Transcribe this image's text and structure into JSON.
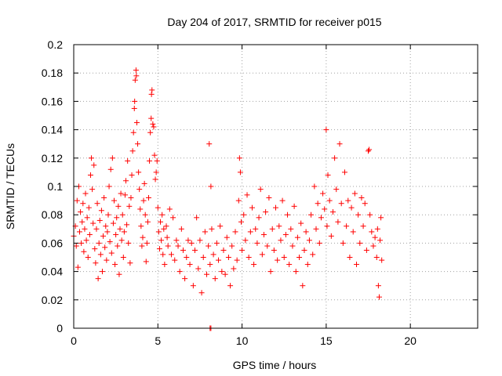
{
  "chart_data": {
    "type": "scatter",
    "title": "Day 204 of 2017, SRMTID for receiver p015",
    "xlabel": "GPS time / hours",
    "ylabel": "SRMTID / TECUs",
    "xlim": [
      0,
      24
    ],
    "ylim": [
      0,
      0.2
    ],
    "xticks": [
      0,
      5,
      10,
      15,
      20
    ],
    "yticks": [
      0,
      0.02,
      0.04,
      0.06,
      0.08,
      0.1,
      0.12,
      0.14,
      0.16,
      0.18,
      0.2
    ],
    "xtick_labels": [
      "0",
      "5",
      "10",
      "15",
      "20"
    ],
    "ytick_labels": [
      "0",
      "0.02",
      "0.04",
      "0.06",
      "0.08",
      "0.1",
      "0.12",
      "0.14",
      "0.16",
      "0.18",
      "0.2"
    ],
    "grid": true,
    "marker": "+",
    "series": [
      {
        "name": "SRMTID",
        "color": "#ff0000",
        "points": [
          [
            0.0,
            0.065
          ],
          [
            0.1,
            0.072
          ],
          [
            0.15,
            0.058
          ],
          [
            0.2,
            0.09
          ],
          [
            0.25,
            0.043
          ],
          [
            0.3,
            0.1
          ],
          [
            0.35,
            0.068
          ],
          [
            0.4,
            0.082
          ],
          [
            0.45,
            0.06
          ],
          [
            0.5,
            0.075
          ],
          [
            0.55,
            0.088
          ],
          [
            0.6,
            0.054
          ],
          [
            0.65,
            0.07
          ],
          [
            0.7,
            0.095
          ],
          [
            0.75,
            0.062
          ],
          [
            0.8,
            0.078
          ],
          [
            0.85,
            0.05
          ],
          [
            0.9,
            0.085
          ],
          [
            0.95,
            0.066
          ],
          [
            1.0,
            0.108
          ],
          [
            1.05,
            0.12
          ],
          [
            1.1,
            0.098
          ],
          [
            1.15,
            0.074
          ],
          [
            1.2,
            0.115
          ],
          [
            1.25,
            0.056
          ],
          [
            1.3,
            0.046
          ],
          [
            1.35,
            0.07
          ],
          [
            1.4,
            0.088
          ],
          [
            1.45,
            0.035
          ],
          [
            1.5,
            0.06
          ],
          [
            1.55,
            0.076
          ],
          [
            1.6,
            0.052
          ],
          [
            1.65,
            0.083
          ],
          [
            1.7,
            0.04
          ],
          [
            1.75,
            0.065
          ],
          [
            1.8,
            0.092
          ],
          [
            1.85,
            0.057
          ],
          [
            1.9,
            0.072
          ],
          [
            1.95,
            0.048
          ],
          [
            2.0,
            0.068
          ],
          [
            2.05,
            0.08
          ],
          [
            2.1,
            0.1
          ],
          [
            2.15,
            0.061
          ],
          [
            2.2,
            0.112
          ],
          [
            2.25,
            0.053
          ],
          [
            2.3,
            0.12
          ],
          [
            2.35,
            0.074
          ],
          [
            2.4,
            0.09
          ],
          [
            2.45,
            0.045
          ],
          [
            2.5,
            0.066
          ],
          [
            2.55,
            0.078
          ],
          [
            2.6,
            0.058
          ],
          [
            2.65,
            0.086
          ],
          [
            2.7,
            0.038
          ],
          [
            2.75,
            0.07
          ],
          [
            2.8,
            0.095
          ],
          [
            2.85,
            0.062
          ],
          [
            2.9,
            0.08
          ],
          [
            2.95,
            0.05
          ],
          [
            3.0,
            0.068
          ],
          [
            3.05,
            0.094
          ],
          [
            3.1,
            0.104
          ],
          [
            3.15,
            0.073
          ],
          [
            3.2,
            0.118
          ],
          [
            3.25,
            0.06
          ],
          [
            3.3,
            0.086
          ],
          [
            3.35,
            0.046
          ],
          [
            3.4,
            0.092
          ],
          [
            3.45,
            0.108
          ],
          [
            3.5,
            0.125
          ],
          [
            3.55,
            0.138
          ],
          [
            3.6,
            0.155
          ],
          [
            3.62,
            0.16
          ],
          [
            3.65,
            0.175
          ],
          [
            3.7,
            0.182
          ],
          [
            3.72,
            0.178
          ],
          [
            3.75,
            0.145
          ],
          [
            3.8,
            0.13
          ],
          [
            3.85,
            0.11
          ],
          [
            3.9,
            0.098
          ],
          [
            3.95,
            0.084
          ],
          [
            4.0,
            0.072
          ],
          [
            4.05,
            0.058
          ],
          [
            4.1,
            0.064
          ],
          [
            4.15,
            0.09
          ],
          [
            4.2,
            0.102
          ],
          [
            4.25,
            0.08
          ],
          [
            4.3,
            0.047
          ],
          [
            4.35,
            0.06
          ],
          [
            4.4,
            0.075
          ],
          [
            4.45,
            0.092
          ],
          [
            4.5,
            0.118
          ],
          [
            4.55,
            0.138
          ],
          [
            4.6,
            0.148
          ],
          [
            4.62,
            0.165
          ],
          [
            4.65,
            0.168
          ],
          [
            4.7,
            0.144
          ],
          [
            4.75,
            0.142
          ],
          [
            4.8,
            0.122
          ],
          [
            4.85,
            0.105
          ],
          [
            4.9,
            0.11
          ],
          [
            4.95,
            0.118
          ],
          [
            5.0,
            0.085
          ],
          [
            5.05,
            0.068
          ],
          [
            5.1,
            0.056
          ],
          [
            5.15,
            0.075
          ],
          [
            5.2,
            0.062
          ],
          [
            5.25,
            0.08
          ],
          [
            5.3,
            0.052
          ],
          [
            5.35,
            0.07
          ],
          [
            5.4,
            0.045
          ],
          [
            5.5,
            0.072
          ],
          [
            5.55,
            0.064
          ],
          [
            5.6,
            0.058
          ],
          [
            5.7,
            0.084
          ],
          [
            5.8,
            0.052
          ],
          [
            5.9,
            0.078
          ],
          [
            6.0,
            0.048
          ],
          [
            6.1,
            0.062
          ],
          [
            6.2,
            0.058
          ],
          [
            6.3,
            0.04
          ],
          [
            6.4,
            0.07
          ],
          [
            6.5,
            0.055
          ],
          [
            6.6,
            0.035
          ],
          [
            6.7,
            0.05
          ],
          [
            6.8,
            0.062
          ],
          [
            6.9,
            0.045
          ],
          [
            7.0,
            0.06
          ],
          [
            7.1,
            0.03
          ],
          [
            7.2,
            0.055
          ],
          [
            7.3,
            0.078
          ],
          [
            7.4,
            0.042
          ],
          [
            7.5,
            0.062
          ],
          [
            7.6,
            0.025
          ],
          [
            7.7,
            0.05
          ],
          [
            7.8,
            0.068
          ],
          [
            7.9,
            0.038
          ],
          [
            8.0,
            0.058
          ],
          [
            8.05,
            0.13
          ],
          [
            8.1,
            0.045
          ],
          [
            8.15,
            0.1
          ],
          [
            8.2,
            0.07
          ],
          [
            8.3,
            0.052
          ],
          [
            8.4,
            0.035
          ],
          [
            8.5,
            0.06
          ],
          [
            8.6,
            0.048
          ],
          [
            8.7,
            0.072
          ],
          [
            8.8,
            0.04
          ],
          [
            8.9,
            0.055
          ],
          [
            9.0,
            0.038
          ],
          [
            9.1,
            0.064
          ],
          [
            9.2,
            0.05
          ],
          [
            9.3,
            0.03
          ],
          [
            9.4,
            0.058
          ],
          [
            9.5,
            0.042
          ],
          [
            9.6,
            0.068
          ],
          [
            9.7,
            0.048
          ],
          [
            9.8,
            0.09
          ],
          [
            9.85,
            0.12
          ],
          [
            9.9,
            0.11
          ],
          [
            9.95,
            0.075
          ],
          [
            10.0,
            0.055
          ],
          [
            10.1,
            0.08
          ],
          [
            10.2,
            0.062
          ],
          [
            10.3,
            0.094
          ],
          [
            10.4,
            0.05
          ],
          [
            10.5,
            0.068
          ],
          [
            10.6,
            0.085
          ],
          [
            10.7,
            0.045
          ],
          [
            10.8,
            0.07
          ],
          [
            10.9,
            0.06
          ],
          [
            11.0,
            0.078
          ],
          [
            11.1,
            0.098
          ],
          [
            11.2,
            0.052
          ],
          [
            11.3,
            0.066
          ],
          [
            11.4,
            0.082
          ],
          [
            11.5,
            0.058
          ],
          [
            11.6,
            0.092
          ],
          [
            11.7,
            0.04
          ],
          [
            11.8,
            0.07
          ],
          [
            11.9,
            0.055
          ],
          [
            12.0,
            0.085
          ],
          [
            12.1,
            0.048
          ],
          [
            12.2,
            0.072
          ],
          [
            12.3,
            0.062
          ],
          [
            12.4,
            0.09
          ],
          [
            12.5,
            0.05
          ],
          [
            12.6,
            0.066
          ],
          [
            12.7,
            0.08
          ],
          [
            12.8,
            0.045
          ],
          [
            12.9,
            0.07
          ],
          [
            13.0,
            0.058
          ],
          [
            13.1,
            0.086
          ],
          [
            13.2,
            0.04
          ],
          [
            13.3,
            0.064
          ],
          [
            13.4,
            0.05
          ],
          [
            13.5,
            0.074
          ],
          [
            13.6,
            0.03
          ],
          [
            13.7,
            0.055
          ],
          [
            13.8,
            0.068
          ],
          [
            13.9,
            0.045
          ],
          [
            14.0,
            0.062
          ],
          [
            14.1,
            0.08
          ],
          [
            14.2,
            0.052
          ],
          [
            14.3,
            0.1
          ],
          [
            14.4,
            0.07
          ],
          [
            14.5,
            0.088
          ],
          [
            14.6,
            0.06
          ],
          [
            14.7,
            0.078
          ],
          [
            14.8,
            0.095
          ],
          [
            14.9,
            0.084
          ],
          [
            15.0,
            0.14
          ],
          [
            15.05,
            0.072
          ],
          [
            15.1,
            0.108
          ],
          [
            15.2,
            0.09
          ],
          [
            15.3,
            0.065
          ],
          [
            15.4,
            0.082
          ],
          [
            15.5,
            0.12
          ],
          [
            15.6,
            0.098
          ],
          [
            15.7,
            0.075
          ],
          [
            15.8,
            0.13
          ],
          [
            15.9,
            0.088
          ],
          [
            16.0,
            0.06
          ],
          [
            16.1,
            0.11
          ],
          [
            16.2,
            0.072
          ],
          [
            16.3,
            0.09
          ],
          [
            16.4,
            0.05
          ],
          [
            16.5,
            0.085
          ],
          [
            16.6,
            0.068
          ],
          [
            16.7,
            0.095
          ],
          [
            16.8,
            0.045
          ],
          [
            16.9,
            0.08
          ],
          [
            17.0,
            0.06
          ],
          [
            17.1,
            0.092
          ],
          [
            17.2,
            0.072
          ],
          [
            17.3,
            0.088
          ],
          [
            17.4,
            0.055
          ],
          [
            17.5,
            0.125
          ],
          [
            17.55,
            0.126
          ],
          [
            17.6,
            0.08
          ],
          [
            17.7,
            0.068
          ],
          [
            17.8,
            0.058
          ],
          [
            17.9,
            0.064
          ],
          [
            18.0,
            0.05
          ],
          [
            18.05,
            0.07
          ],
          [
            18.1,
            0.03
          ],
          [
            18.15,
            0.022
          ],
          [
            18.2,
            0.062
          ],
          [
            18.25,
            0.078
          ],
          [
            18.3,
            0.048
          ]
        ],
        "zero_points": [
          [
            8.1,
            0.0
          ],
          [
            8.15,
            0.0
          ]
        ]
      }
    ]
  }
}
